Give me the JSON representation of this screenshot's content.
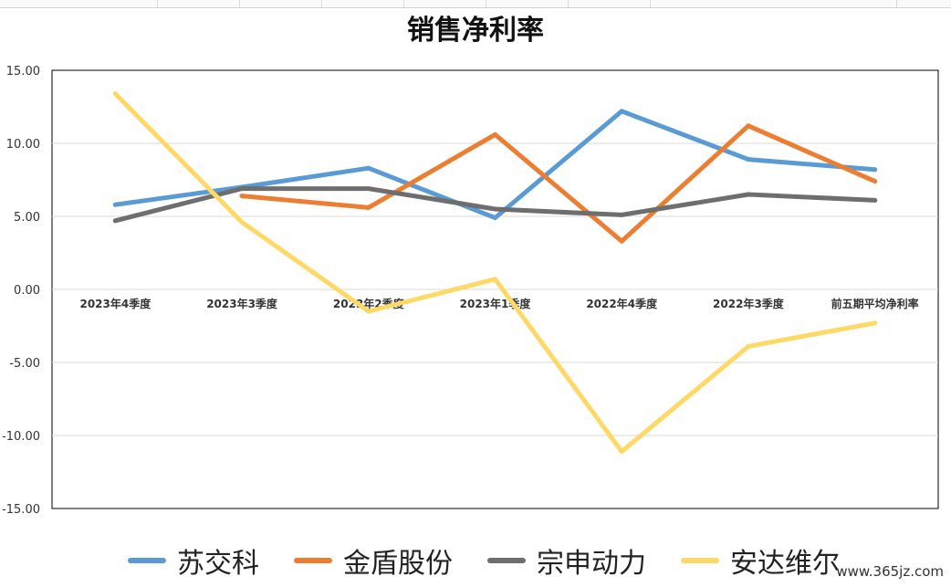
{
  "chart_data": {
    "type": "line",
    "title": "销售净利率",
    "categories": [
      "2023年4季度",
      "2023年3季度",
      "2023年2季度",
      "2023年1季度",
      "2022年4季度",
      "2022年3季度",
      "前五期平均净利率"
    ],
    "ylim": [
      -15,
      15
    ],
    "yticks": [
      "15.00",
      "10.00",
      "5.00",
      "0.00",
      "-5.00",
      "-10.00",
      "-15.00"
    ],
    "ytick_values": [
      15,
      10,
      5,
      0,
      -5,
      -10,
      -15
    ],
    "grid": true,
    "legend_position": "bottom",
    "series": [
      {
        "name": "苏交科",
        "color": "#5b9bd5",
        "values": [
          5.8,
          7.0,
          8.3,
          4.9,
          12.2,
          8.9,
          8.2
        ]
      },
      {
        "name": "金盾股份",
        "color": "#ed7d31",
        "values": [
          null,
          6.4,
          5.6,
          10.6,
          3.3,
          11.2,
          7.4
        ]
      },
      {
        "name": "宗申动力",
        "color": "#6e6e6e",
        "values": [
          4.7,
          6.9,
          6.9,
          5.5,
          5.1,
          6.5,
          6.1
        ]
      },
      {
        "name": "安达维尔",
        "color": "#ffd966",
        "values": [
          13.4,
          4.6,
          -1.5,
          0.7,
          -11.1,
          -3.9,
          -2.3
        ]
      }
    ]
  },
  "watermark": "www.365jz.com"
}
